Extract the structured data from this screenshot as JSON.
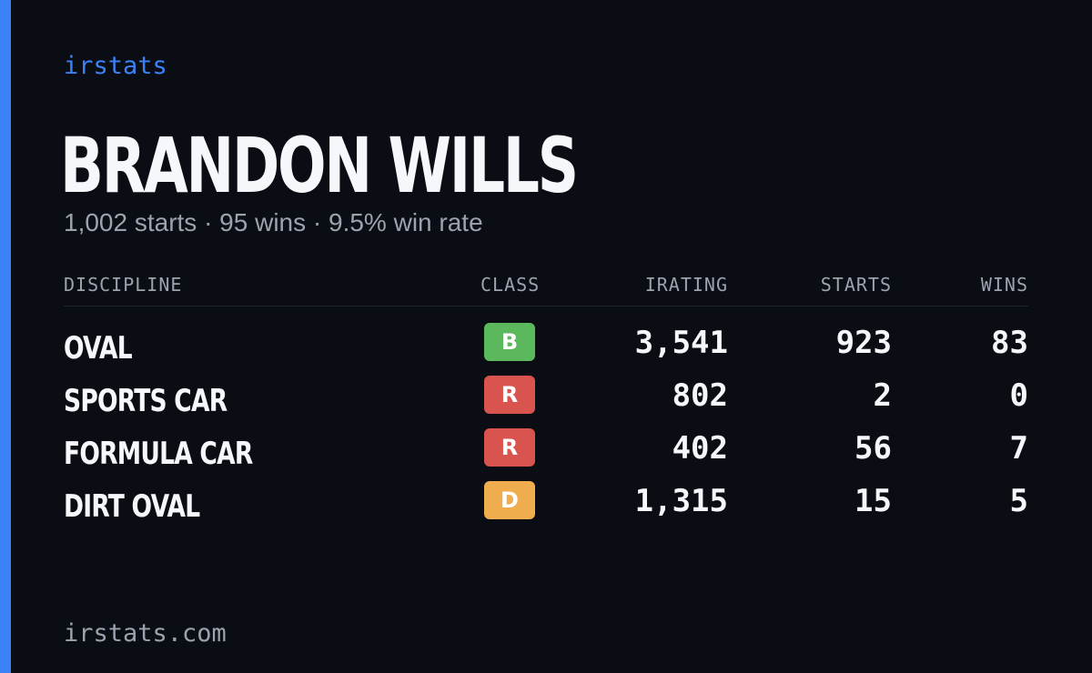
{
  "brand": "irstats",
  "driver": {
    "name": "BRANDON WILLS",
    "summary": "1,002 starts · 95 wins · 9.5% win rate"
  },
  "table": {
    "headers": {
      "discipline": "DISCIPLINE",
      "class": "CLASS",
      "irating": "IRATING",
      "starts": "STARTS",
      "wins": "WINS"
    },
    "rows": [
      {
        "discipline": "OVAL",
        "class": "B",
        "class_color": "#5cb85c",
        "irating": "3,541",
        "starts": "923",
        "wins": "83"
      },
      {
        "discipline": "SPORTS CAR",
        "class": "R",
        "class_color": "#d9534f",
        "irating": "802",
        "starts": "2",
        "wins": "0"
      },
      {
        "discipline": "FORMULA CAR",
        "class": "R",
        "class_color": "#d9534f",
        "irating": "402",
        "starts": "56",
        "wins": "7"
      },
      {
        "discipline": "DIRT OVAL",
        "class": "D",
        "class_color": "#f0ad4e",
        "irating": "1,315",
        "starts": "15",
        "wins": "5"
      }
    ]
  },
  "footer": "irstats.com",
  "colors": {
    "accent": "#3b82f6",
    "background": "#0a0d14"
  }
}
